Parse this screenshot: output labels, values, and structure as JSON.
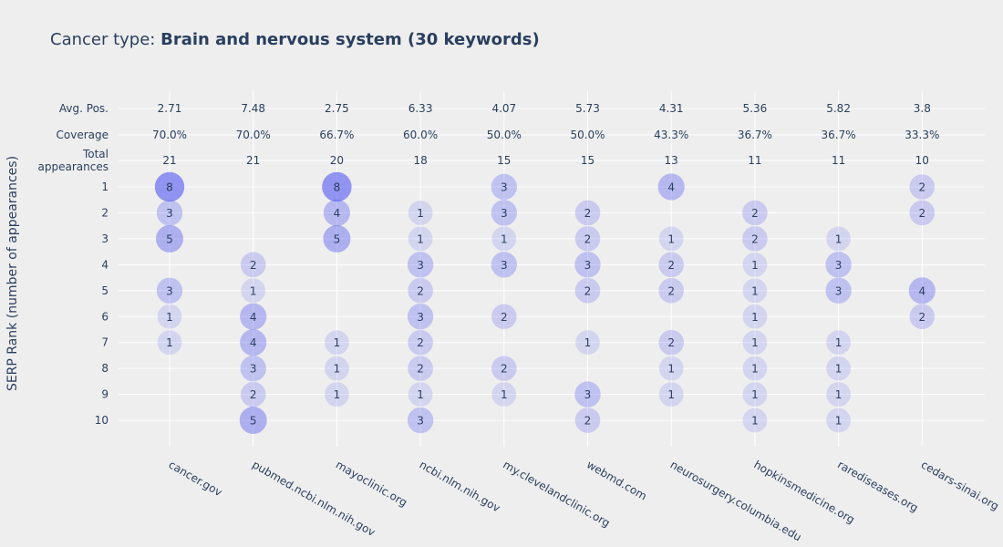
{
  "title": {
    "prefix": "Cancer type: ",
    "bold": "Brain and nervous system (30 keywords)"
  },
  "colors": {
    "background": "#eeeeee",
    "grid": "#ffffff",
    "text": "#2a3f5f",
    "bubble_base": "#5a5ff0"
  },
  "chart_data": {
    "type": "scatter",
    "title": "Cancer type: Brain and nervous system (30 keywords)",
    "ylabel": "SERP Rank (number of appearances)",
    "xlabel": "",
    "categories": [
      "cancer.gov",
      "pubmed.ncbi.nlm.nih.gov",
      "mayoclinic.org",
      "ncbi.nlm.nih.gov",
      "my.clevelandclinic.org",
      "webmd.com",
      "neurosurgery.columbia.edu",
      "hopkinsmedicine.org",
      "rarediseases.org",
      "cedars-sinai.org"
    ],
    "summary_rows": [
      {
        "label": "Avg. Pos.",
        "values": [
          "2.71",
          "7.48",
          "2.75",
          "6.33",
          "4.07",
          "5.73",
          "4.31",
          "5.36",
          "5.82",
          "3.8"
        ]
      },
      {
        "label": "Coverage",
        "values": [
          "70.0%",
          "70.0%",
          "66.7%",
          "60.0%",
          "50.0%",
          "50.0%",
          "43.3%",
          "36.7%",
          "36.7%",
          "33.3%"
        ]
      },
      {
        "label": "Total appearances",
        "label_lines": [
          "Total",
          "appearances"
        ],
        "values": [
          "21",
          "21",
          "20",
          "18",
          "15",
          "15",
          "13",
          "11",
          "11",
          "10"
        ]
      }
    ],
    "ranks": [
      "1",
      "2",
      "3",
      "4",
      "5",
      "6",
      "7",
      "8",
      "9",
      "10"
    ],
    "counts": [
      [
        8,
        3,
        5,
        0,
        3,
        1,
        1,
        0,
        0,
        0
      ],
      [
        0,
        0,
        0,
        2,
        1,
        4,
        4,
        3,
        2,
        5
      ],
      [
        8,
        4,
        5,
        0,
        0,
        0,
        1,
        1,
        1,
        0
      ],
      [
        0,
        1,
        1,
        3,
        2,
        3,
        2,
        2,
        1,
        3
      ],
      [
        3,
        3,
        1,
        3,
        0,
        2,
        0,
        2,
        1,
        0
      ],
      [
        0,
        2,
        2,
        3,
        2,
        0,
        1,
        0,
        3,
        2
      ],
      [
        4,
        0,
        1,
        2,
        2,
        0,
        2,
        1,
        1,
        0
      ],
      [
        0,
        2,
        2,
        1,
        1,
        1,
        1,
        1,
        1,
        1
      ],
      [
        0,
        0,
        1,
        3,
        3,
        0,
        1,
        1,
        1,
        1
      ],
      [
        2,
        2,
        0,
        0,
        4,
        2,
        0,
        0,
        0,
        0
      ]
    ],
    "grid": true
  }
}
